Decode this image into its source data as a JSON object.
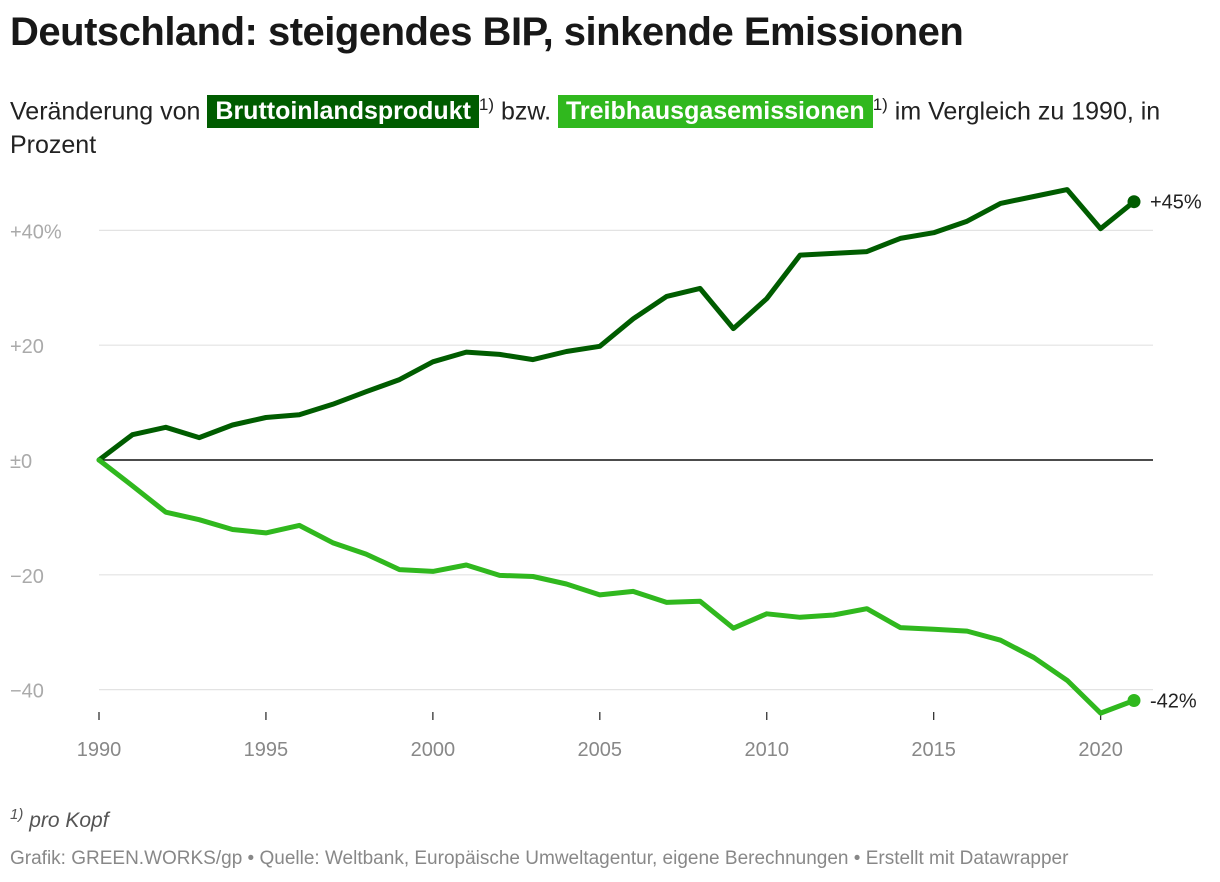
{
  "header": {
    "title": "Deutschland: steigendes BIP, sinkende Emissionen",
    "sub_prefix": "Veränderung von",
    "sub_gdp": "Bruttoinlandsprodukt",
    "sub_fn1": "1)",
    "sub_mid": "bzw.",
    "sub_ghg": "Treibhausgasemissionen",
    "sub_fn2": "1)",
    "sub_suffix": "im Vergleich zu 1990, in Prozent"
  },
  "footer": {
    "footnote_marker": "1)",
    "footnote_text": "pro Kopf",
    "credit": "Grafik: GREEN.WORKS/gp • Quelle: Weltbank, Europäische Umweltagentur, eigene Berechnungen • Erstellt mit Datawrapper"
  },
  "colors": {
    "gdp": "#005c00",
    "ghg": "#30b81e"
  },
  "chart_data": {
    "type": "line",
    "title": "Deutschland: steigendes BIP, sinkende Emissionen",
    "x": [
      1990,
      1991,
      1992,
      1993,
      1994,
      1995,
      1996,
      1997,
      1998,
      1999,
      2000,
      2001,
      2002,
      2003,
      2004,
      2005,
      2006,
      2007,
      2008,
      2009,
      2010,
      2011,
      2012,
      2013,
      2014,
      2015,
      2016,
      2017,
      2018,
      2019,
      2020,
      2021
    ],
    "series": [
      {
        "name": "Bruttoinlandsprodukt",
        "color": "#005c00",
        "end_label": "+45%",
        "values": [
          0,
          4.4,
          5.7,
          3.9,
          6.1,
          7.4,
          7.9,
          9.7,
          11.9,
          14.0,
          17.1,
          18.8,
          18.4,
          17.5,
          18.9,
          19.8,
          24.6,
          28.5,
          29.9,
          22.9,
          28.1,
          35.7,
          36.0,
          36.3,
          38.6,
          39.6,
          41.6,
          44.7,
          45.9,
          47.1,
          40.3,
          45.0
        ]
      },
      {
        "name": "Treibhausgasemissionen",
        "color": "#30b81e",
        "end_label": "-42%",
        "values": [
          0,
          -4.5,
          -9.1,
          -10.4,
          -12.1,
          -12.7,
          -11.4,
          -14.4,
          -16.4,
          -19.1,
          -19.4,
          -18.3,
          -20.1,
          -20.3,
          -21.6,
          -23.5,
          -22.9,
          -24.8,
          -24.6,
          -29.3,
          -26.8,
          -27.4,
          -27.0,
          -25.9,
          -29.2,
          -29.5,
          -29.8,
          -31.4,
          -34.4,
          -38.4,
          -44.1,
          -41.9
        ]
      }
    ],
    "ylim": [
      -44,
      48
    ],
    "y_ticks": [
      {
        "value": 40,
        "label": "+40%"
      },
      {
        "value": 20,
        "label": "+20"
      },
      {
        "value": 0,
        "label": "±0"
      },
      {
        "value": -20,
        "label": "−20"
      },
      {
        "value": -40,
        "label": "−40"
      }
    ],
    "x_ticks": [
      1990,
      1995,
      2000,
      2005,
      2010,
      2015,
      2020
    ],
    "xlim": [
      1990,
      2021
    ],
    "grid": true,
    "legend": "inline in subtitle"
  }
}
